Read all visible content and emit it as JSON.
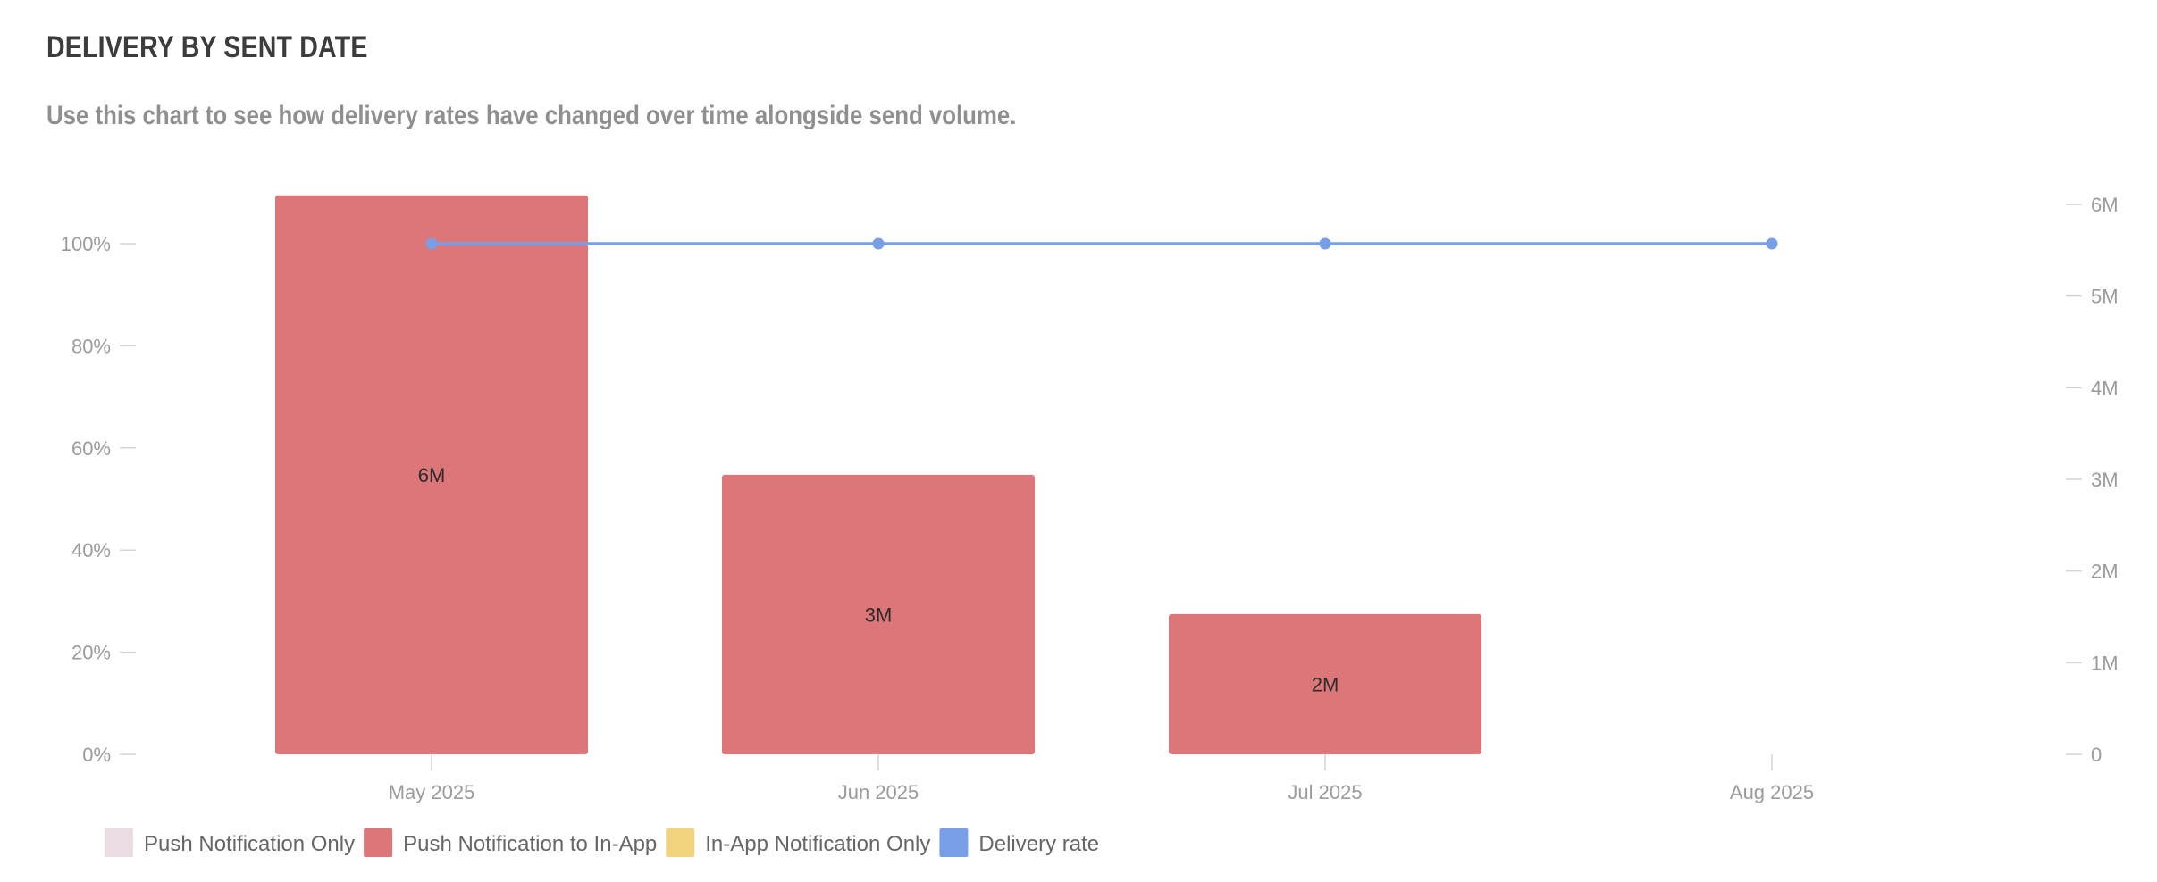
{
  "chart_data": {
    "type": "bar",
    "title": "DELIVERY BY SENT DATE",
    "subtitle": "Use this chart to see how delivery rates have changed over time alongside send volume.",
    "categories": [
      "May 2025",
      "Jun 2025",
      "Jul 2025",
      "Aug 2025"
    ],
    "series": [
      {
        "name": "Push Notification Only",
        "type": "bar",
        "axis": "right",
        "color": "#ecdce3",
        "values": [
          0,
          0,
          0,
          0
        ]
      },
      {
        "name": "Push Notification to In-App",
        "type": "bar",
        "axis": "right",
        "color": "#dc7678",
        "values": [
          6.1,
          3.05,
          1.53,
          0
        ],
        "data_labels": [
          "6M",
          "3M",
          "2M",
          ""
        ]
      },
      {
        "name": "In-App Notification Only",
        "type": "bar",
        "axis": "right",
        "color": "#f1d37e",
        "values": [
          0,
          0,
          0,
          0
        ]
      },
      {
        "name": "Delivery rate",
        "type": "line",
        "axis": "left",
        "color": "#789ee6",
        "values": [
          100,
          100,
          100,
          100
        ]
      }
    ],
    "left_axis": {
      "ylim": [
        0,
        100
      ],
      "ticks": [
        0,
        20,
        40,
        60,
        80,
        100
      ],
      "tick_labels": [
        "0%",
        "20%",
        "40%",
        "60%",
        "80%",
        "100%"
      ]
    },
    "right_axis": {
      "ylim": [
        0,
        6
      ],
      "ticks": [
        0,
        1,
        2,
        3,
        4,
        5,
        6
      ],
      "tick_labels": [
        "0",
        "1M",
        "2M",
        "3M",
        "4M",
        "5M",
        "6M"
      ]
    },
    "legend": "bottom-left",
    "grid": false
  },
  "colors": {
    "title": "#3c3c3c",
    "subtitle": "#8f8f8f",
    "axis_text": "#9b9b9b",
    "axis_tick": "#d4d4d4",
    "legend_text": "#666666",
    "data_label": "#2b2b2b"
  }
}
